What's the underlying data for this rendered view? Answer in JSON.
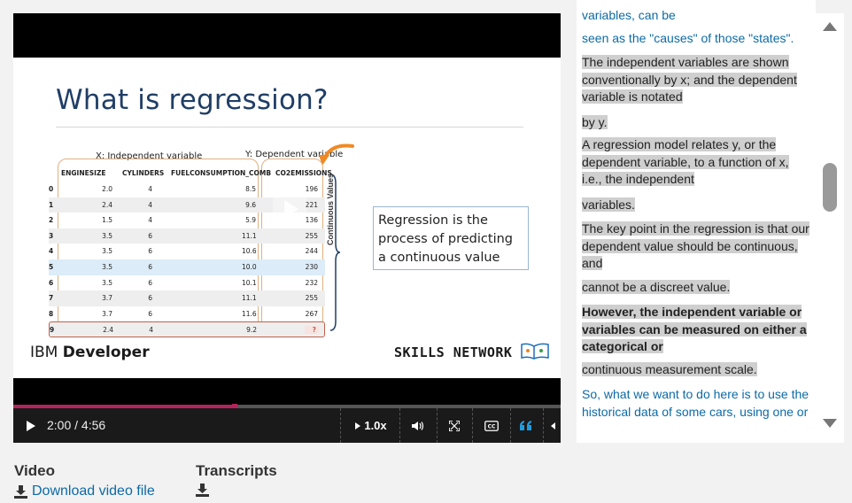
{
  "slide": {
    "title": "What is regression?",
    "independent_label": "X: Independent variable",
    "dependent_label": "Y: Dependent variable",
    "table": {
      "headers": [
        "ENGINESIZE",
        "CYLINDERS",
        "FUELCONSUMPTION_COMB",
        "CO2EMISSIONS"
      ],
      "rows": [
        [
          "0",
          "2.0",
          "4",
          "8.5",
          "196"
        ],
        [
          "1",
          "2.4",
          "4",
          "9.6",
          "221"
        ],
        [
          "2",
          "1.5",
          "4",
          "5.9",
          "136"
        ],
        [
          "3",
          "3.5",
          "6",
          "11.1",
          "255"
        ],
        [
          "4",
          "3.5",
          "6",
          "10.6",
          "244"
        ],
        [
          "5",
          "3.5",
          "6",
          "10.0",
          "230"
        ],
        [
          "6",
          "3.5",
          "6",
          "10.1",
          "232"
        ],
        [
          "7",
          "3.7",
          "6",
          "11.1",
          "255"
        ],
        [
          "8",
          "3.7",
          "6",
          "11.6",
          "267"
        ],
        [
          "9",
          "2.4",
          "4",
          "9.2",
          "?"
        ]
      ]
    },
    "continuous_values_label": "Continuous Values",
    "callout": "Regression is the process of predicting a continuous value",
    "brand_left_prefix": "IBM ",
    "brand_left_bold": "Developer",
    "brand_right": "SKILLS NETWORK"
  },
  "player": {
    "time": "2:00 / 4:56",
    "progress": 0.405,
    "speed": "1.0x",
    "colors": {
      "progress": "#b4245c",
      "accent": "#1e9be0"
    }
  },
  "transcript": {
    "segments": [
      {
        "text": "variables, can be",
        "active": false,
        "bold": false
      },
      {
        "text": "seen as the \"causes\" of those \"states\".",
        "active": false,
        "bold": false
      },
      {
        "text": "The independent variables are shown conventionally by x; and the dependent variable is notated",
        "active": true,
        "bold": false
      },
      {
        "text": "by y.",
        "active": true,
        "bold": false
      },
      {
        "text": "A regression model relates y, or the dependent variable, to a function of x, i.e., the independent",
        "active": true,
        "bold": false
      },
      {
        "text": "variables.",
        "active": true,
        "bold": false
      },
      {
        "text": "The key point in the regression is that our dependent value should be continuous, and",
        "active": true,
        "bold": false
      },
      {
        "text": "cannot be a discreet value.",
        "active": true,
        "bold": false
      },
      {
        "text": "However, the independent variable or variables can be measured on either a categorical or",
        "active": true,
        "bold": true
      },
      {
        "text": "continuous measurement scale.",
        "active": true,
        "bold": false
      },
      {
        "text": "So, what we want to do here is to use the historical data of some cars, using one or",
        "active": false,
        "bold": false
      }
    ]
  },
  "downloads": {
    "video_heading": "Video",
    "video_link": "Download video file",
    "transcripts_heading": "Transcripts"
  }
}
